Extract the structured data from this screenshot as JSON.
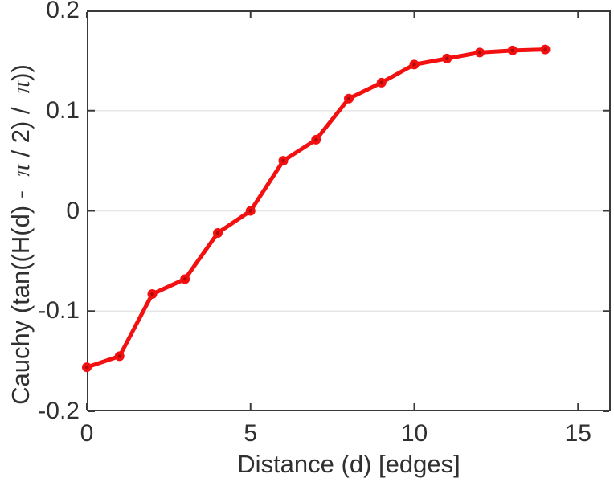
{
  "chart_data": {
    "type": "line",
    "title": "",
    "xlabel": "Distance (d) [edges]",
    "ylabel": "Cauchy (tan((H(d) -  π / 2) /  π))",
    "x": [
      0,
      1,
      2,
      3,
      4,
      5,
      6,
      7,
      8,
      9,
      10,
      11,
      12,
      13,
      14
    ],
    "series": [
      {
        "name": "Cauchy",
        "values": [
          -0.156,
          -0.145,
          -0.083,
          -0.068,
          -0.022,
          0.0,
          0.05,
          0.071,
          0.112,
          0.128,
          0.146,
          0.152,
          0.158,
          0.16,
          0.161
        ]
      }
    ],
    "xlim": [
      0,
      16
    ],
    "ylim": [
      -0.2,
      0.2
    ],
    "xticks": {
      "values": [
        0,
        5,
        10,
        15
      ],
      "labels": [
        "0",
        "5",
        "10",
        "15"
      ]
    },
    "yticks": {
      "values": [
        0.2,
        0.1,
        0,
        -0.1,
        -0.2
      ],
      "labels": [
        "0.2",
        "0.1",
        "0",
        "-0.1",
        "-0.2"
      ]
    },
    "grid": {
      "horizontal": true,
      "vertical": false
    },
    "legend": null,
    "marker": "circle",
    "colors": {
      "line": "#f21010",
      "marker_fill": "#f21010",
      "marker_center": "#ad0a0a",
      "axis": "#3a3a3a",
      "grid": "#e6e6e6",
      "text": "#303030",
      "background": "#ffffff"
    }
  }
}
